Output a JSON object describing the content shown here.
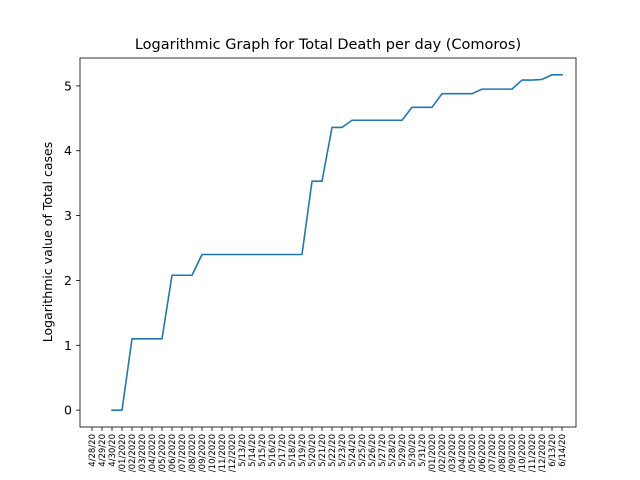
{
  "chart_data": {
    "type": "line",
    "title": "Logarithmic Graph for Total Death per day (Comoros)",
    "xlabel": "",
    "ylabel": "Logarithmic value of Total cases",
    "x": [
      "4/28/20",
      "4/29/20",
      "4/30/20",
      "5/01/2020",
      "5/02/2020",
      "5/03/2020",
      "5/04/2020",
      "5/05/2020",
      "5/06/2020",
      "5/07/2020",
      "5/08/2020",
      "5/09/2020",
      "5/10/2020",
      "5/11/2020",
      "5/12/2020",
      "5/13/20",
      "5/14/20",
      "5/15/20",
      "5/16/20",
      "5/17/20",
      "5/18/20",
      "5/19/20",
      "5/20/20",
      "5/21/20",
      "5/22/20",
      "5/23/20",
      "5/24/20",
      "5/25/20",
      "5/26/20",
      "5/27/20",
      "5/28/20",
      "5/29/20",
      "5/30/20",
      "5/31/20",
      "6/01/2020",
      "6/02/2020",
      "6/03/2020",
      "6/04/2020",
      "6/05/2020",
      "6/06/2020",
      "6/07/2020",
      "6/08/2020",
      "6/09/2020",
      "6/10/2020",
      "6/11/2020",
      "6/12/2020",
      "6/13/20",
      "6/14/20"
    ],
    "tick_labels": [
      "4/28/20",
      "4/29/20",
      "4/30/20",
      "/01/2020",
      "/02/2020",
      "/03/2020",
      "/04/2020",
      "/05/2020",
      "/06/2020",
      "/07/2020",
      "/08/2020",
      "/09/2020",
      "/10/2020",
      "/11/2020",
      "/12/2020",
      "5/13/20",
      "5/14/20",
      "5/15/20",
      "5/16/20",
      "5/17/20",
      "5/18/20",
      "5/19/20",
      "5/20/20",
      "5/21/20",
      "5/22/20",
      "5/23/20",
      "5/24/20",
      "5/25/20",
      "5/26/20",
      "5/27/20",
      "5/28/20",
      "5/29/20",
      "5/30/20",
      "5/31/20",
      "/01/2020",
      "/02/2020",
      "/03/2020",
      "/04/2020",
      "/05/2020",
      "/06/2020",
      "/07/2020",
      "/08/2020",
      "/09/2020",
      "/10/2020",
      "/11/2020",
      "/12/2020",
      "6/13/20",
      "6/14/20"
    ],
    "series": [
      {
        "values": [
          null,
          null,
          0,
          0,
          1.1,
          1.1,
          1.1,
          1.1,
          2.08,
          2.08,
          2.08,
          2.4,
          2.4,
          2.4,
          2.4,
          2.4,
          2.4,
          2.4,
          2.4,
          2.4,
          2.4,
          2.4,
          3.53,
          3.53,
          4.36,
          4.36,
          4.47,
          4.47,
          4.47,
          4.47,
          4.47,
          4.47,
          4.67,
          4.67,
          4.67,
          4.88,
          4.88,
          4.88,
          4.88,
          4.95,
          4.95,
          4.95,
          4.95,
          5.09,
          5.09,
          5.1,
          5.17,
          5.17
        ],
        "color": "#1f77b4"
      }
    ],
    "yticks": [
      0,
      1,
      2,
      3,
      4,
      5
    ],
    "ylim": [
      -0.26,
      5.43
    ],
    "grid": false,
    "legend": "none"
  }
}
